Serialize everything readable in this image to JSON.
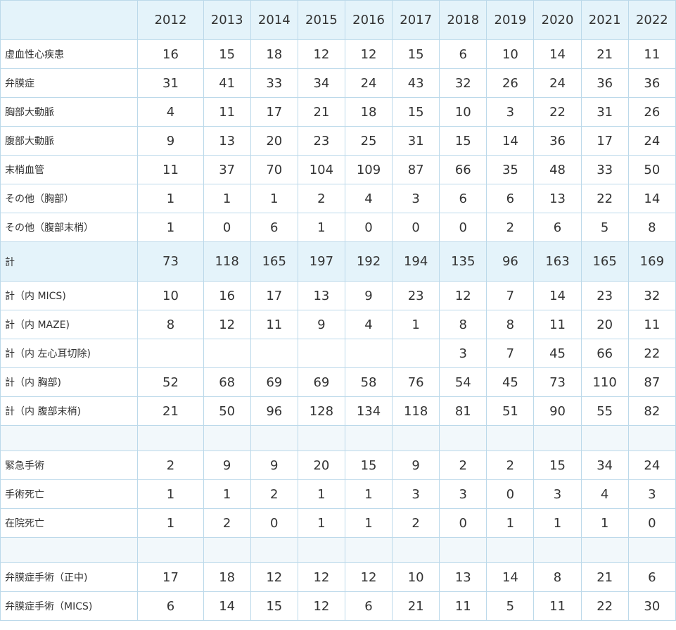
{
  "table": {
    "corner_label": "",
    "years": [
      "2012",
      "2013",
      "2014",
      "2015",
      "2016",
      "2017",
      "2018",
      "2019",
      "2020",
      "2021",
      "2022"
    ],
    "rows": [
      {
        "type": "data",
        "label": "虚血性心疾患",
        "values": [
          "16",
          "15",
          "18",
          "12",
          "12",
          "15",
          "6",
          "10",
          "14",
          "21",
          "11"
        ]
      },
      {
        "type": "data",
        "label": "弁膜症",
        "values": [
          "31",
          "41",
          "33",
          "34",
          "24",
          "43",
          "32",
          "26",
          "24",
          "36",
          "36"
        ]
      },
      {
        "type": "data",
        "label": "胸部大動脈",
        "values": [
          "4",
          "11",
          "17",
          "21",
          "18",
          "15",
          "10",
          "3",
          "22",
          "31",
          "26"
        ]
      },
      {
        "type": "data",
        "label": "腹部大動脈",
        "values": [
          "9",
          "13",
          "20",
          "23",
          "25",
          "31",
          "15",
          "14",
          "36",
          "17",
          "24"
        ]
      },
      {
        "type": "data",
        "label": "末梢血管",
        "values": [
          "11",
          "37",
          "70",
          "104",
          "109",
          "87",
          "66",
          "35",
          "48",
          "33",
          "50"
        ]
      },
      {
        "type": "data",
        "label": "その他（胸部）",
        "values": [
          "1",
          "1",
          "1",
          "2",
          "4",
          "3",
          "6",
          "6",
          "13",
          "22",
          "14"
        ]
      },
      {
        "type": "data",
        "label": "その他（腹部末梢）",
        "values": [
          "1",
          "0",
          "6",
          "1",
          "0",
          "0",
          "0",
          "2",
          "6",
          "5",
          "8"
        ]
      },
      {
        "type": "total",
        "label": "計",
        "values": [
          "73",
          "118",
          "165",
          "197",
          "192",
          "194",
          "135",
          "96",
          "163",
          "165",
          "169"
        ]
      },
      {
        "type": "data",
        "label": "計（内 MICS)",
        "values": [
          "10",
          "16",
          "17",
          "13",
          "9",
          "23",
          "12",
          "7",
          "14",
          "23",
          "32"
        ]
      },
      {
        "type": "data",
        "label": "計（内 MAZE)",
        "values": [
          "8",
          "12",
          "11",
          "9",
          "4",
          "1",
          "8",
          "8",
          "11",
          "20",
          "11"
        ]
      },
      {
        "type": "data",
        "label": "計（内 左心耳切除)",
        "values": [
          "",
          "",
          "",
          "",
          "",
          "",
          "3",
          "7",
          "45",
          "66",
          "22"
        ]
      },
      {
        "type": "data",
        "label": "計（内 胸部)",
        "values": [
          "52",
          "68",
          "69",
          "69",
          "58",
          "76",
          "54",
          "45",
          "73",
          "110",
          "87"
        ]
      },
      {
        "type": "data",
        "label": "計（内 腹部末梢)",
        "values": [
          "21",
          "50",
          "96",
          "128",
          "134",
          "118",
          "81",
          "51",
          "90",
          "55",
          "82"
        ]
      },
      {
        "type": "spacer",
        "label": "",
        "values": [
          "",
          "",
          "",
          "",
          "",
          "",
          "",
          "",
          "",
          "",
          ""
        ]
      },
      {
        "type": "data",
        "label": "緊急手術",
        "values": [
          "2",
          "9",
          "9",
          "20",
          "15",
          "9",
          "2",
          "2",
          "15",
          "34",
          "24"
        ]
      },
      {
        "type": "data",
        "label": "手術死亡",
        "values": [
          "1",
          "1",
          "2",
          "1",
          "1",
          "3",
          "3",
          "0",
          "3",
          "4",
          "3"
        ]
      },
      {
        "type": "data",
        "label": "在院死亡",
        "values": [
          "1",
          "2",
          "0",
          "1",
          "1",
          "2",
          "0",
          "1",
          "1",
          "1",
          "0"
        ]
      },
      {
        "type": "spacer",
        "label": "",
        "values": [
          "",
          "",
          "",
          "",
          "",
          "",
          "",
          "",
          "",
          "",
          ""
        ]
      },
      {
        "type": "data",
        "label": "弁膜症手術（正中)",
        "values": [
          "17",
          "18",
          "12",
          "12",
          "12",
          "10",
          "13",
          "14",
          "8",
          "21",
          "6"
        ]
      },
      {
        "type": "data",
        "label": "弁膜症手術（MICS)",
        "values": [
          "6",
          "14",
          "15",
          "12",
          "6",
          "21",
          "11",
          "5",
          "11",
          "22",
          "30"
        ]
      }
    ]
  }
}
